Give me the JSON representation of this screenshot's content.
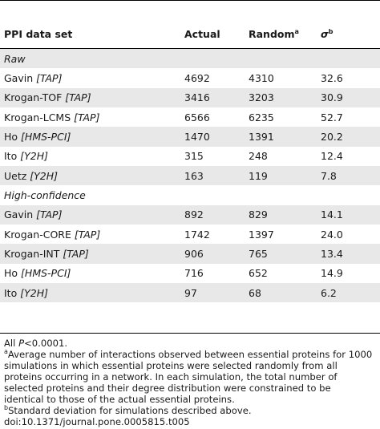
{
  "table": {
    "header": {
      "dataset": "PPI data set",
      "actual": "Actual",
      "random": "Random",
      "random_sup": "a",
      "sigma": "σ",
      "sigma_sup": "b"
    },
    "sections": [
      {
        "label": "Raw",
        "rows": [
          {
            "name": "Gavin",
            "method": "[TAP]",
            "actual": "4692",
            "random": "4310",
            "sigma": "32.6"
          },
          {
            "name": "Krogan-TOF",
            "method": "[TAP]",
            "actual": "3416",
            "random": "3203",
            "sigma": "30.9"
          },
          {
            "name": "Krogan-LCMS",
            "method": "[TAP]",
            "actual": "6566",
            "random": "6235",
            "sigma": "52.7"
          },
          {
            "name": "Ho",
            "method": "[HMS-PCI]",
            "actual": "1470",
            "random": "1391",
            "sigma": "20.2"
          },
          {
            "name": "Ito",
            "method": "[Y2H]",
            "actual": "315",
            "random": "248",
            "sigma": "12.4"
          },
          {
            "name": "Uetz",
            "method": "[Y2H]",
            "actual": "163",
            "random": "119",
            "sigma": "7.8"
          }
        ]
      },
      {
        "label": "High-confidence",
        "rows": [
          {
            "name": "Gavin",
            "method": "[TAP]",
            "actual": "892",
            "random": "829",
            "sigma": "14.1"
          },
          {
            "name": "Krogan-CORE",
            "method": "[TAP]",
            "actual": "1742",
            "random": "1397",
            "sigma": "24.0"
          },
          {
            "name": "Krogan-INT",
            "method": "[TAP]",
            "actual": "906",
            "random": "765",
            "sigma": "13.4"
          },
          {
            "name": "Ho",
            "method": "[HMS-PCI]",
            "actual": "716",
            "random": "652",
            "sigma": "14.9"
          },
          {
            "name": "Ito",
            "method": "[Y2H]",
            "actual": "97",
            "random": "68",
            "sigma": "6.2"
          }
        ]
      }
    ]
  },
  "notes": {
    "all_p_prefix": "All ",
    "all_p_var": "P",
    "all_p_rest": "<0.0001.",
    "note_a_sup": "a",
    "note_a_lines": [
      "Average number of interactions observed between essential proteins for 1000",
      "simulations in which essential proteins were selected randomly from all",
      "proteins occurring in a network. In each simulation, the total number of",
      "selected proteins and their degree distribution were constrained to be",
      "identical to those of the actual essential proteins."
    ],
    "note_b_sup": "b",
    "note_b_text": "Standard deviation for simulations described above.",
    "doi": "doi:10.1371/journal.pone.0005815.t005"
  }
}
